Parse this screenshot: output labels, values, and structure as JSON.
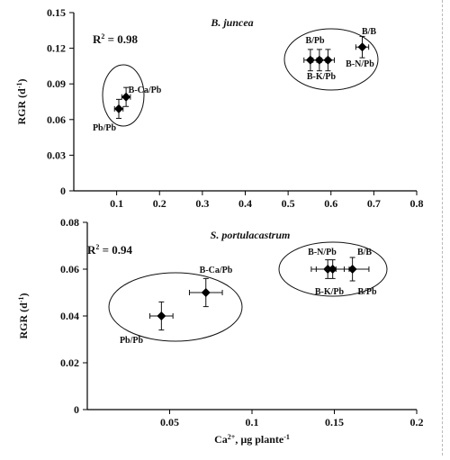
{
  "chart_data": [
    {
      "type": "scatter",
      "title": "B. juncea",
      "ylabel": "RGR (d⁻¹)",
      "xlabel": "",
      "xlim": [
        0,
        0.8
      ],
      "ylim": [
        0,
        0.15
      ],
      "x_ticks": [
        "0.1",
        "0.2",
        "0.3",
        "0.4",
        "0.5",
        "0.6",
        "0.7",
        "0.8"
      ],
      "y_ticks": [
        "0",
        "0.03",
        "0.06",
        "0.09",
        "0.12",
        "0.15"
      ],
      "annotation": "R² = 0.98",
      "points": [
        {
          "label": "Pb/Pb",
          "x": 0.105,
          "y": 0.069,
          "xerr": 0.01,
          "yerr": 0.008
        },
        {
          "label": "B-Ca/Pb",
          "x": 0.122,
          "y": 0.079,
          "xerr": 0.01,
          "yerr": 0.008
        },
        {
          "label": "B/Pb",
          "x": 0.552,
          "y": 0.11,
          "xerr": 0.015,
          "yerr": 0.009
        },
        {
          "label": "",
          "x": 0.573,
          "y": 0.11,
          "xerr": 0.015,
          "yerr": 0.009
        },
        {
          "label": "B-K/Pb",
          "x": 0.593,
          "y": 0.11,
          "xerr": 0.015,
          "yerr": 0.009
        },
        {
          "label": "B/B",
          "x": 0.673,
          "y": 0.121,
          "xerr": 0.015,
          "yerr": 0.009
        },
        {
          "label": "B-N/Pb",
          "x": 0.63,
          "y": 0.11,
          "xerr": 0,
          "yerr": 0
        }
      ],
      "groups": [
        {
          "labels": [
            "Pb/Pb",
            "B-Ca/Pb"
          ]
        },
        {
          "labels": [
            "B/Pb",
            "B-K/Pb",
            "B-N/Pb",
            "B/B"
          ]
        }
      ]
    },
    {
      "type": "scatter",
      "title": "S. portulacastrum",
      "ylabel": "RGR (d⁻¹)",
      "xlabel": "Ca²⁺, µg plante⁻¹",
      "xlim": [
        0,
        0.2
      ],
      "ylim": [
        0,
        0.08
      ],
      "x_ticks": [
        "0.05",
        "0.1",
        "0.15",
        "0.2"
      ],
      "y_ticks": [
        "0",
        "0.02",
        "0.04",
        "0.06",
        "0.08"
      ],
      "annotation": "R² = 0.94",
      "points": [
        {
          "label": "Pb/Pb",
          "x": 0.045,
          "y": 0.04,
          "xerr": 0.007,
          "yerr": 0.006
        },
        {
          "label": "B-Ca/Pb",
          "x": 0.072,
          "y": 0.05,
          "xerr": 0.01,
          "yerr": 0.006
        },
        {
          "label": "B-N/Pb",
          "x": 0.146,
          "y": 0.06,
          "xerr": 0.01,
          "yerr": 0.004
        },
        {
          "label": "B-K/Pb",
          "x": 0.149,
          "y": 0.06,
          "xerr": 0.01,
          "yerr": 0.004
        },
        {
          "label": "B/B",
          "x": 0.161,
          "y": 0.06,
          "xerr": 0.01,
          "yerr": 0.005
        },
        {
          "label": "B/Pb",
          "x": 0.161,
          "y": 0.06,
          "xerr": 0,
          "yerr": 0
        }
      ],
      "groups": [
        {
          "labels": [
            "Pb/Pb",
            "B-Ca/Pb"
          ]
        },
        {
          "labels": [
            "B-N/Pb",
            "B-K/Pb",
            "B/B",
            "B/Pb"
          ]
        }
      ]
    }
  ]
}
